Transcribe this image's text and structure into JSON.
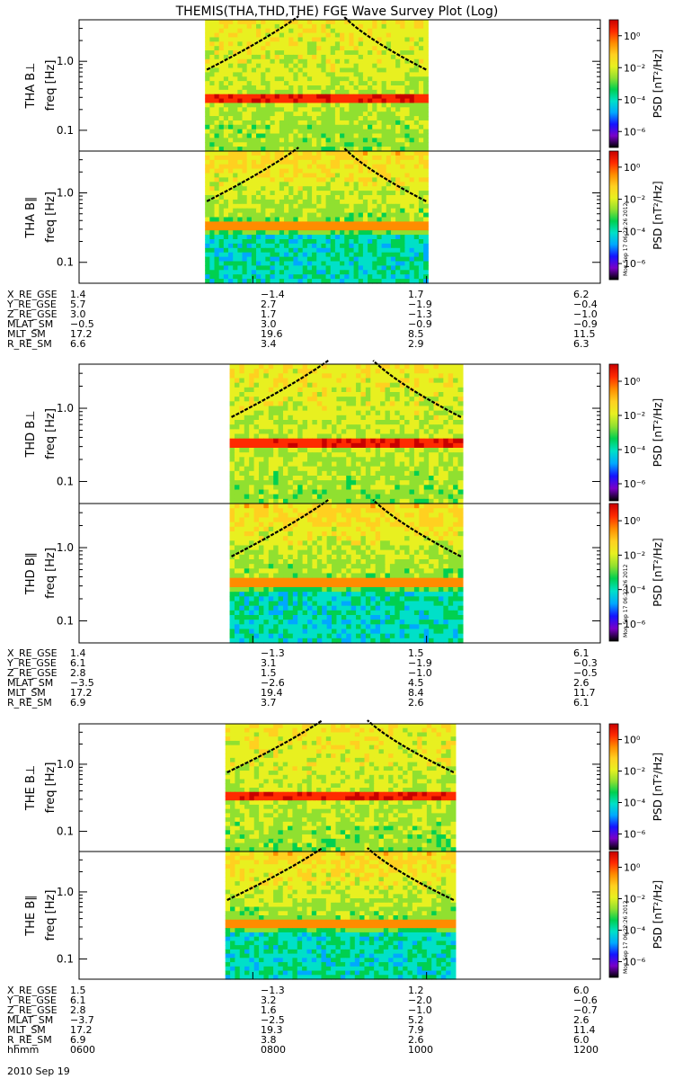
{
  "title": "THEMIS(THA,THD,THE) FGE Wave Survey Plot (Log)",
  "colors": {
    "colormap": [
      "#000000",
      "#7a00c8",
      "#1414ff",
      "#00a8ff",
      "#00e0c8",
      "#00d050",
      "#90e030",
      "#e8f020",
      "#ffd020",
      "#ff8c00",
      "#ff2a00",
      "#c80000"
    ],
    "gyro_line": "#000000"
  },
  "colorbar": {
    "label": "PSD [nT²/Hz]",
    "ticks": [
      "10⁰",
      "10⁻²",
      "10⁻⁴",
      "10⁻⁶"
    ],
    "tick_exponents": [
      0,
      -2,
      -4,
      -6
    ],
    "range_log": [
      -7,
      1
    ]
  },
  "stamp": "Mon Sep 17 06:22:26 2012",
  "chart_data": [
    {
      "type": "heatmap",
      "panel": "THA B⊥",
      "ylabel": "THA B⊥",
      "ylabel2": "freq [Hz]",
      "yscale": "log",
      "ylim": [
        0.05,
        4.0
      ],
      "ytick_labels": [
        "1.0",
        "0.1"
      ],
      "ytick_values": [
        1.0,
        0.1
      ],
      "x_range_hhmm": [
        "0600",
        "1200"
      ],
      "data_x_range_hhmm": [
        "0727",
        "1001"
      ],
      "peak_band_hz": 0.3
    },
    {
      "type": "heatmap",
      "panel": "THA B∥",
      "ylabel": "THA B∥",
      "ylabel2": "freq [Hz]",
      "yscale": "log",
      "ylim": [
        0.05,
        4.0
      ],
      "ytick_labels": [
        "1.0",
        "0.1"
      ],
      "ytick_values": [
        1.0,
        0.1
      ],
      "x_range_hhmm": [
        "0600",
        "1200"
      ],
      "data_x_range_hhmm": [
        "0727",
        "1001"
      ],
      "peak_band_hz": 0.33
    },
    {
      "type": "heatmap",
      "panel": "THD B⊥",
      "ylabel": "THD B⊥",
      "ylabel2": "freq [Hz]",
      "yscale": "log",
      "ylim": [
        0.05,
        4.0
      ],
      "ytick_labels": [
        "1.0",
        "0.1"
      ],
      "ytick_values": [
        1.0,
        0.1
      ],
      "x_range_hhmm": [
        "0600",
        "1200"
      ],
      "data_x_range_hhmm": [
        "0744",
        "1025"
      ],
      "peak_band_hz": 0.32
    },
    {
      "type": "heatmap",
      "panel": "THD B∥",
      "ylabel": "THD B∥",
      "ylabel2": "freq [Hz]",
      "yscale": "log",
      "ylim": [
        0.05,
        4.0
      ],
      "ytick_labels": [
        "1.0",
        "0.1"
      ],
      "ytick_values": [
        1.0,
        0.1
      ],
      "x_range_hhmm": [
        "0600",
        "1200"
      ],
      "data_x_range_hhmm": [
        "0744",
        "1025"
      ],
      "peak_band_hz": 0.34
    },
    {
      "type": "heatmap",
      "panel": "THE B⊥",
      "ylabel": "THE B⊥",
      "ylabel2": "freq [Hz]",
      "yscale": "log",
      "ylim": [
        0.05,
        4.0
      ],
      "ytick_labels": [
        "1.0",
        "0.1"
      ],
      "ytick_values": [
        1.0,
        0.1
      ],
      "x_range_hhmm": [
        "0600",
        "1200"
      ],
      "data_x_range_hhmm": [
        "0741",
        "1020"
      ],
      "peak_band_hz": 0.32
    },
    {
      "type": "heatmap",
      "panel": "THE B∥",
      "ylabel": "THE B∥",
      "ylabel2": "freq [Hz]",
      "yscale": "log",
      "ylim": [
        0.05,
        4.0
      ],
      "ytick_labels": [
        "1.0",
        "0.1"
      ],
      "ytick_values": [
        1.0,
        0.1
      ],
      "x_range_hhmm": [
        "0600",
        "1200"
      ],
      "data_x_range_hhmm": [
        "0741",
        "1020"
      ],
      "peak_band_hz": 0.34
    }
  ],
  "ephemeris": [
    {
      "probe": "THA",
      "rows": [
        {
          "label": "X_RE_GSE",
          "values": [
            "1.4",
            "−1.4",
            "1.7",
            "6.2"
          ]
        },
        {
          "label": "Y_RE_GSE",
          "values": [
            "5.7",
            "2.7",
            "−1.9",
            "−0.4"
          ]
        },
        {
          "label": "Z_RE_GSE",
          "values": [
            "3.0",
            "1.7",
            "−1.3",
            "−1.0"
          ]
        },
        {
          "label": "MLAT_SM",
          "values": [
            "−0.5",
            "3.0",
            "−0.9",
            "−0.9"
          ]
        },
        {
          "label": "MLT_SM",
          "values": [
            "17.2",
            "19.6",
            "8.5",
            "11.5"
          ]
        },
        {
          "label": "R_RE_SM",
          "values": [
            "6.6",
            "3.4",
            "2.9",
            "6.3"
          ]
        }
      ]
    },
    {
      "probe": "THD",
      "rows": [
        {
          "label": "X_RE_GSE",
          "values": [
            "1.4",
            "−1.3",
            "1.5",
            "6.1"
          ]
        },
        {
          "label": "Y_RE_GSE",
          "values": [
            "6.1",
            "3.1",
            "−1.9",
            "−0.3"
          ]
        },
        {
          "label": "Z_RE_GSE",
          "values": [
            "2.8",
            "1.5",
            "−1.0",
            "−0.5"
          ]
        },
        {
          "label": "MLAT_SM",
          "values": [
            "−3.5",
            "−2.6",
            "4.5",
            "2.6"
          ]
        },
        {
          "label": "MLT_SM",
          "values": [
            "17.2",
            "19.4",
            "8.4",
            "11.7"
          ]
        },
        {
          "label": "R_RE_SM",
          "values": [
            "6.9",
            "3.7",
            "2.6",
            "6.1"
          ]
        }
      ]
    },
    {
      "probe": "THE",
      "rows": [
        {
          "label": "X_RE_GSE",
          "values": [
            "1.5",
            "−1.3",
            "1.2",
            "6.0"
          ]
        },
        {
          "label": "Y_RE_GSE",
          "values": [
            "6.1",
            "3.2",
            "−2.0",
            "−0.6"
          ]
        },
        {
          "label": "Z_RE_GSE",
          "values": [
            "2.8",
            "1.6",
            "−1.0",
            "−0.7"
          ]
        },
        {
          "label": "MLAT_SM",
          "values": [
            "−3.7",
            "−2.5",
            "5.2",
            "2.6"
          ]
        },
        {
          "label": "MLT_SM",
          "values": [
            "17.2",
            "19.3",
            "7.9",
            "11.4"
          ]
        },
        {
          "label": "R_RE_SM",
          "values": [
            "6.9",
            "3.8",
            "2.6",
            "6.0"
          ]
        },
        {
          "label": "hhmm",
          "values": [
            "0600",
            "0800",
            "1000",
            "1200"
          ]
        }
      ]
    }
  ],
  "date_label": "2010 Sep 19"
}
